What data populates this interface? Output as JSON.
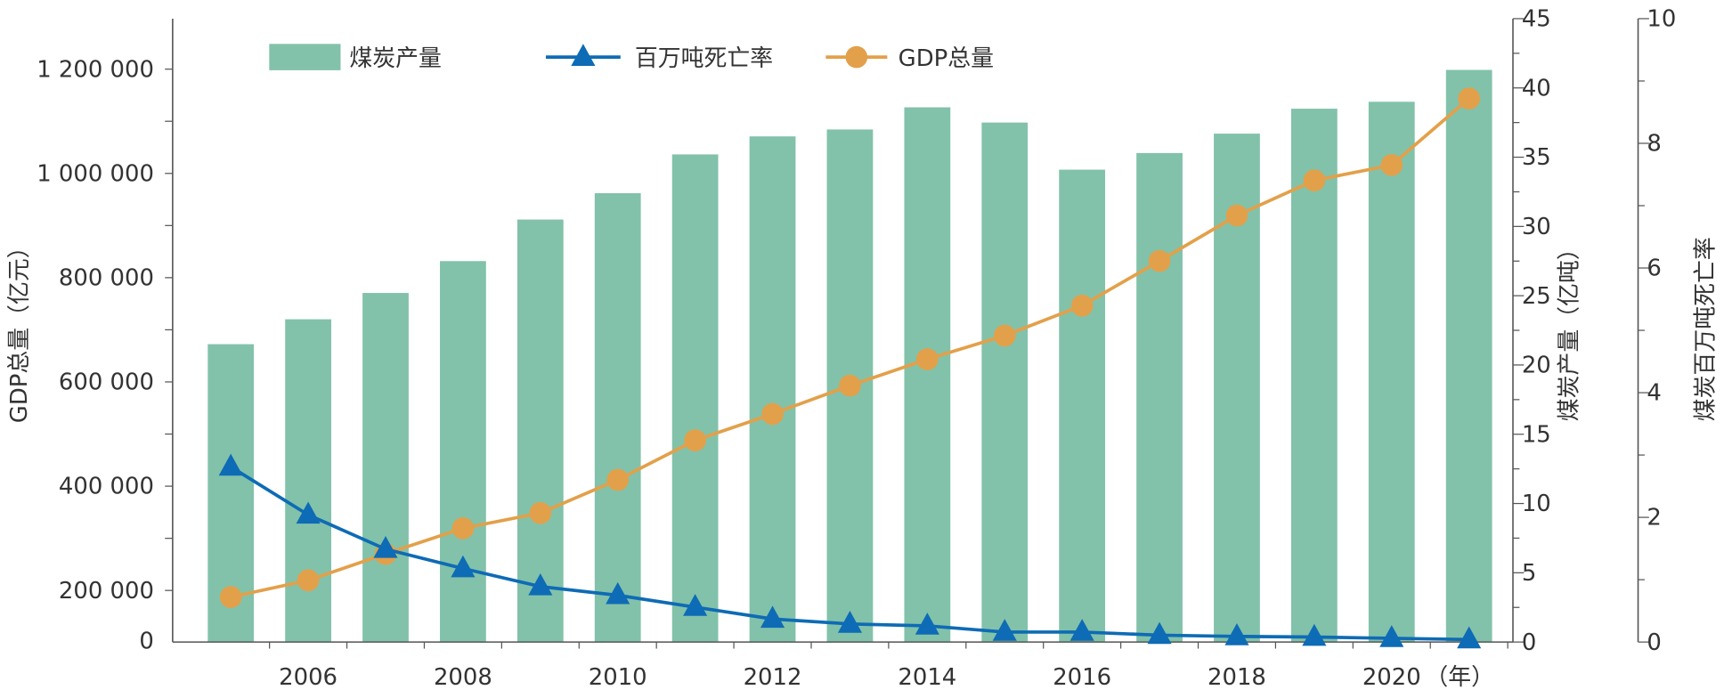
{
  "chart_data": {
    "type": "bar+line",
    "categories": [
      2005,
      2006,
      2007,
      2008,
      2009,
      2010,
      2011,
      2012,
      2013,
      2014,
      2015,
      2016,
      2017,
      2018,
      2019,
      2020,
      2021
    ],
    "x_tick_labels": [
      "2006",
      "2008",
      "2010",
      "2012",
      "2014",
      "2016",
      "2018",
      "2020"
    ],
    "x_unit": "（年）",
    "series": [
      {
        "name": "煤炭产量",
        "type": "bar",
        "axis": "right1",
        "color": "#82c2aa",
        "values": [
          21.5,
          23.3,
          25.2,
          27.5,
          30.5,
          32.4,
          35.2,
          36.5,
          37.0,
          38.6,
          37.5,
          34.1,
          35.3,
          36.7,
          38.5,
          39.0,
          41.3
        ]
      },
      {
        "name": "百万吨死亡率",
        "type": "line",
        "marker": "triangle",
        "axis": "right2",
        "color": "#0e6bb5",
        "values": [
          2.81,
          2.04,
          1.49,
          1.18,
          0.89,
          0.75,
          0.56,
          0.37,
          0.29,
          0.26,
          0.16,
          0.16,
          0.11,
          0.09,
          0.08,
          0.06,
          0.04
        ]
      },
      {
        "name": "GDP总量",
        "type": "line",
        "marker": "circle",
        "axis": "left",
        "color": "#e3a04a",
        "values": [
          187319,
          219439,
          270092,
          319245,
          348518,
          412119,
          487940,
          538580,
          592963,
          643563,
          688858,
          746395,
          832036,
          919281,
          986515,
          1015986,
          1143670
        ]
      }
    ],
    "left_axis": {
      "label": "GDP总量（亿元）",
      "ticks": [
        0,
        200000,
        400000,
        600000,
        800000,
        1000000,
        1200000
      ],
      "tick_labels": [
        "0",
        "200 000",
        "400 000",
        "600 000",
        "800 000",
        "1 000 000",
        "1 200 000"
      ]
    },
    "right_axis_1": {
      "label": "煤炭产量（亿吨）",
      "range": [
        0,
        45
      ],
      "ticks": [
        0,
        5,
        10,
        15,
        20,
        25,
        30,
        35,
        40,
        45
      ]
    },
    "right_axis_2": {
      "label": "煤炭百万吨死亡率",
      "range": [
        0,
        10
      ],
      "ticks": [
        0,
        2,
        4,
        6,
        8,
        10
      ]
    },
    "legend": {
      "placement": "top",
      "entries": [
        "煤炭产量",
        "百万吨死亡率",
        "GDP总量"
      ]
    }
  }
}
